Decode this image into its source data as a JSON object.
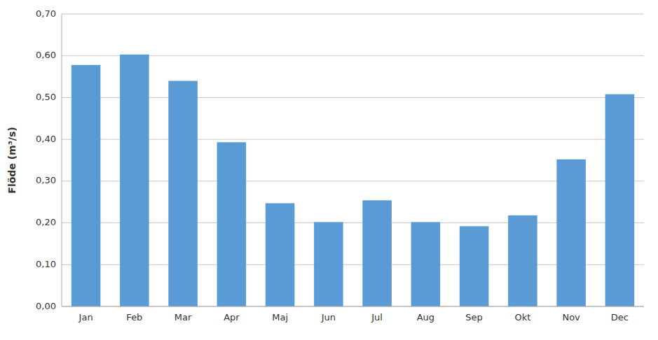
{
  "chart_data": {
    "type": "bar",
    "categories": [
      "Jan",
      "Feb",
      "Mar",
      "Apr",
      "Maj",
      "Jun",
      "Jul",
      "Aug",
      "Sep",
      "Okt",
      "Nov",
      "Dec"
    ],
    "values": [
      0.578,
      0.603,
      0.54,
      0.393,
      0.247,
      0.202,
      0.254,
      0.202,
      0.192,
      0.218,
      0.352,
      0.508
    ],
    "color": "#5B9BD5",
    "ylabel": "Flöde (m³/s)",
    "ylim": [
      0.0,
      0.7
    ],
    "yticks": [
      {
        "value": 0.0,
        "label": "0,00"
      },
      {
        "value": 0.1,
        "label": "0,10"
      },
      {
        "value": 0.2,
        "label": "0,20"
      },
      {
        "value": 0.3,
        "label": "0,30"
      },
      {
        "value": 0.4,
        "label": "0,40"
      },
      {
        "value": 0.5,
        "label": "0,50"
      },
      {
        "value": 0.6,
        "label": "0,60"
      },
      {
        "value": 0.7,
        "label": "0,70"
      }
    ],
    "grid": true
  }
}
